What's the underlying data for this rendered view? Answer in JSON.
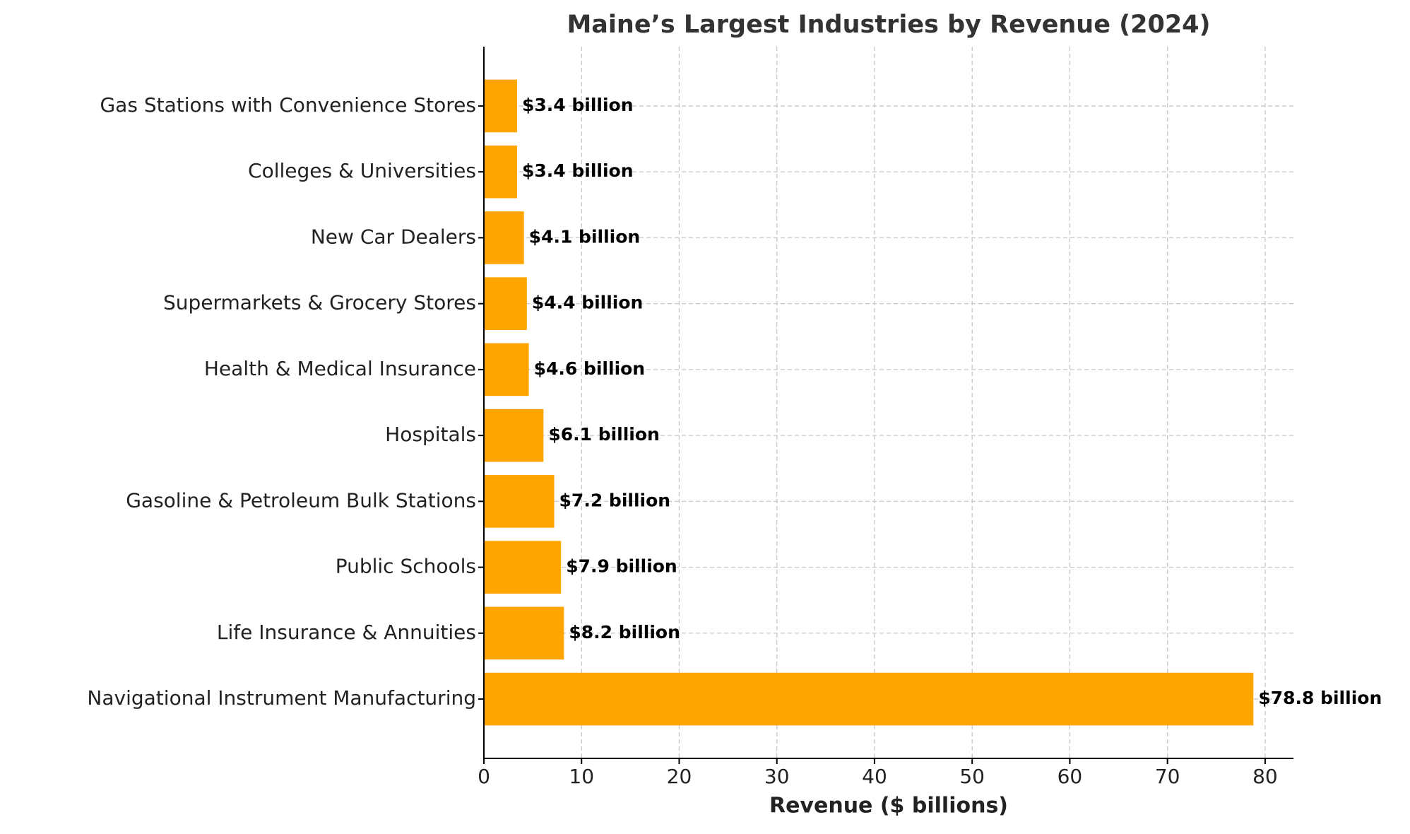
{
  "chart_data": {
    "type": "barh",
    "title": "Maine’s Largest Industries by Revenue (2024)",
    "xlabel": "Revenue ($ billions)",
    "categories": [
      "Navigational Instrument Manufacturing",
      "Life Insurance & Annuities",
      "Public Schools",
      "Gasoline & Petroleum Bulk Stations",
      "Hospitals",
      "Health & Medical Insurance",
      "Supermarkets & Grocery Stores",
      "New Car Dealers",
      "Colleges & Universities",
      "Gas Stations with Convenience Stores"
    ],
    "values": [
      78.8,
      8.2,
      7.9,
      7.2,
      6.1,
      4.6,
      4.4,
      4.1,
      3.4,
      3.4
    ],
    "value_labels": [
      "$78.8 billion",
      "$8.2 billion",
      "$7.9 billion",
      "$7.2 billion",
      "$6.1 billion",
      "$4.6 billion",
      "$4.4 billion",
      "$4.1 billion",
      "$3.4 billion",
      "$3.4 billion"
    ],
    "color": "#ffa500",
    "xlim": [
      0,
      82.9
    ],
    "xticks": [
      0,
      10,
      20,
      30,
      40,
      50,
      60,
      70,
      80
    ],
    "grid": true
  }
}
